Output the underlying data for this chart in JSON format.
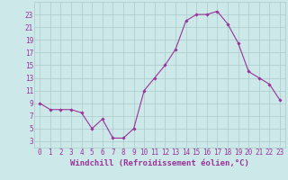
{
  "hours": [
    0,
    1,
    2,
    3,
    4,
    5,
    6,
    7,
    8,
    9,
    10,
    11,
    12,
    13,
    14,
    15,
    16,
    17,
    18,
    19,
    20,
    21,
    22,
    23
  ],
  "windchill": [
    9.0,
    8.0,
    8.0,
    8.0,
    7.5,
    5.0,
    6.5,
    3.5,
    3.5,
    5.0,
    11.0,
    13.0,
    15.0,
    17.5,
    22.0,
    23.0,
    23.0,
    23.5,
    21.5,
    18.5,
    14.0,
    13.0,
    12.0,
    9.5
  ],
  "line_color": "#993399",
  "marker": "D",
  "marker_size": 1.8,
  "bg_color": "#cce8e8",
  "grid_color": "#aacccc",
  "xlabel": "Windchill (Refroidissement éolien,°C)",
  "xlabel_color": "#993399",
  "xlabel_fontsize": 6.5,
  "tick_color": "#993399",
  "tick_fontsize": 5.5,
  "ylim": [
    2,
    25
  ],
  "yticks": [
    3,
    5,
    7,
    9,
    11,
    13,
    15,
    17,
    19,
    21,
    23
  ],
  "xticks": [
    0,
    1,
    2,
    3,
    4,
    5,
    6,
    7,
    8,
    9,
    10,
    11,
    12,
    13,
    14,
    15,
    16,
    17,
    18,
    19,
    20,
    21,
    22,
    23
  ]
}
